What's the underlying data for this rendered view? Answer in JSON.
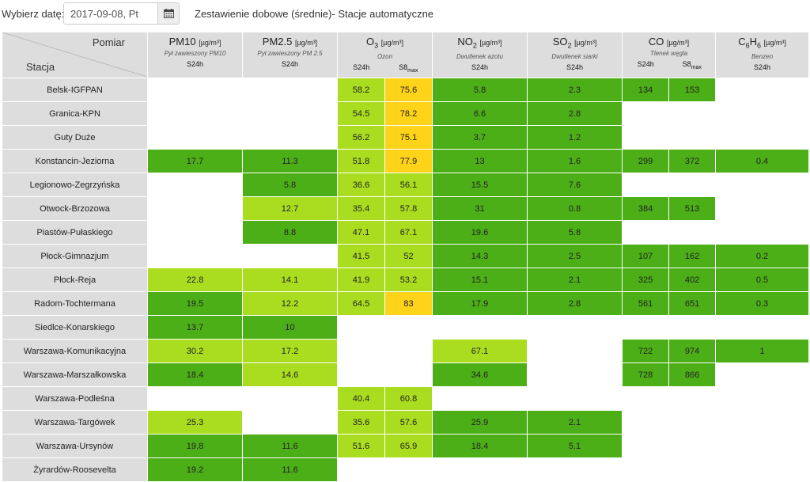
{
  "toolbar": {
    "date_label": "Wybierz datę:",
    "date_value": "2017-09-08, Pt",
    "calendar_icon": "calendar-icon",
    "title": "Zestawienie dobowe (średnie)- Stacje automatyczne"
  },
  "table": {
    "corner": {
      "top": "Pomiar",
      "bottom": "Stacja"
    },
    "columns": [
      {
        "name": "PM10",
        "sub": "",
        "unit": "[µg/m³]",
        "desc": "Pył zawieszony PM10",
        "stats": [
          "S24h"
        ]
      },
      {
        "name": "PM2.5",
        "sub": "",
        "unit": "[µg/m³]",
        "desc": "Pył zawieszony PM 2.5",
        "stats": [
          "S24h"
        ]
      },
      {
        "name": "O",
        "sub": "3",
        "unit": "[µg/m³]",
        "desc": "Ozon",
        "stats": [
          "S24h",
          "S8max"
        ]
      },
      {
        "name": "NO",
        "sub": "2",
        "unit": "[µg/m³]",
        "desc": "Dwutlenek azotu",
        "stats": [
          "S24h"
        ]
      },
      {
        "name": "SO",
        "sub": "2",
        "unit": "[µg/m³]",
        "desc": "Dwutlenek siarki",
        "stats": [
          "S24h"
        ]
      },
      {
        "name": "CO",
        "sub": "",
        "unit": "[µg/m³]",
        "desc": "Tlenek węgla",
        "stats": [
          "S24h",
          "S8max"
        ]
      },
      {
        "name": "C6H6",
        "sub": "",
        "unit": "[µg/m³]",
        "desc": "Benzen",
        "stats": [
          "S24h"
        ]
      }
    ],
    "legend_colors": {
      "g1": "#4caf17",
      "g2": "#aadd20",
      "y": "#ffd31a"
    },
    "rows": [
      {
        "station": "Belsk-IGFPAN",
        "cells": [
          [
            "",
            ""
          ],
          [
            "",
            ""
          ],
          [
            "58.2",
            "g2"
          ],
          [
            "75.6",
            "y"
          ],
          [
            "5.8",
            "g1"
          ],
          [
            "2.3",
            "g1"
          ],
          [
            "134",
            "g1"
          ],
          [
            "153",
            "g1"
          ],
          [
            "",
            ""
          ]
        ]
      },
      {
        "station": "Granica-KPN",
        "cells": [
          [
            "",
            ""
          ],
          [
            "",
            ""
          ],
          [
            "54.5",
            "g2"
          ],
          [
            "78.2",
            "y"
          ],
          [
            "6.6",
            "g1"
          ],
          [
            "2.8",
            "g1"
          ],
          [
            "",
            ""
          ],
          [
            "",
            ""
          ],
          [
            "",
            ""
          ]
        ]
      },
      {
        "station": "Guty Duże",
        "cells": [
          [
            "",
            ""
          ],
          [
            "",
            ""
          ],
          [
            "56.2",
            "g2"
          ],
          [
            "75.1",
            "y"
          ],
          [
            "3.7",
            "g1"
          ],
          [
            "1.2",
            "g1"
          ],
          [
            "",
            ""
          ],
          [
            "",
            ""
          ],
          [
            "",
            ""
          ]
        ]
      },
      {
        "station": "Konstancin-Jeziorna",
        "cells": [
          [
            "17.7",
            "g1"
          ],
          [
            "11.3",
            "g1"
          ],
          [
            "51.8",
            "g2"
          ],
          [
            "77.9",
            "y"
          ],
          [
            "13",
            "g1"
          ],
          [
            "1.6",
            "g1"
          ],
          [
            "299",
            "g1"
          ],
          [
            "372",
            "g1"
          ],
          [
            "0.4",
            "g1"
          ]
        ]
      },
      {
        "station": "Legionowo-Zegrzyńska",
        "cells": [
          [
            "",
            ""
          ],
          [
            "5.8",
            "g1"
          ],
          [
            "36.6",
            "g2"
          ],
          [
            "56.1",
            "g2"
          ],
          [
            "15.5",
            "g1"
          ],
          [
            "7.6",
            "g1"
          ],
          [
            "",
            ""
          ],
          [
            "",
            ""
          ],
          [
            "",
            ""
          ]
        ]
      },
      {
        "station": "Otwock-Brzozowa",
        "cells": [
          [
            "",
            ""
          ],
          [
            "12.7",
            "g2"
          ],
          [
            "35.4",
            "g2"
          ],
          [
            "57.8",
            "g2"
          ],
          [
            "31",
            "g1"
          ],
          [
            "0.8",
            "g1"
          ],
          [
            "384",
            "g1"
          ],
          [
            "513",
            "g1"
          ],
          [
            "",
            ""
          ]
        ]
      },
      {
        "station": "Piastów-Pułaskiego",
        "cells": [
          [
            "",
            ""
          ],
          [
            "8.8",
            "g1"
          ],
          [
            "47.1",
            "g2"
          ],
          [
            "67.1",
            "g2"
          ],
          [
            "19.6",
            "g1"
          ],
          [
            "5.8",
            "g1"
          ],
          [
            "",
            ""
          ],
          [
            "",
            ""
          ],
          [
            "",
            ""
          ]
        ]
      },
      {
        "station": "Płock-Gimnazjum",
        "cells": [
          [
            "",
            ""
          ],
          [
            "",
            ""
          ],
          [
            "41.5",
            "g2"
          ],
          [
            "52",
            "g2"
          ],
          [
            "14.3",
            "g1"
          ],
          [
            "2.5",
            "g1"
          ],
          [
            "107",
            "g1"
          ],
          [
            "162",
            "g1"
          ],
          [
            "0.2",
            "g1"
          ]
        ]
      },
      {
        "station": "Płock-Reja",
        "cells": [
          [
            "22.8",
            "g2"
          ],
          [
            "14.1",
            "g2"
          ],
          [
            "41.9",
            "g2"
          ],
          [
            "53.2",
            "g2"
          ],
          [
            "15.1",
            "g1"
          ],
          [
            "2.1",
            "g1"
          ],
          [
            "325",
            "g1"
          ],
          [
            "402",
            "g1"
          ],
          [
            "0.5",
            "g1"
          ]
        ]
      },
      {
        "station": "Radom-Tochtermana",
        "cells": [
          [
            "19.5",
            "g1"
          ],
          [
            "12.2",
            "g2"
          ],
          [
            "64.5",
            "g2"
          ],
          [
            "83",
            "y"
          ],
          [
            "17.9",
            "g1"
          ],
          [
            "2.8",
            "g1"
          ],
          [
            "561",
            "g1"
          ],
          [
            "651",
            "g1"
          ],
          [
            "0.3",
            "g1"
          ]
        ]
      },
      {
        "station": "Siedlce-Konarskiego",
        "cells": [
          [
            "13.7",
            "g1"
          ],
          [
            "10",
            "g1"
          ],
          [
            "",
            ""
          ],
          [
            "",
            ""
          ],
          [
            "",
            ""
          ],
          [
            "",
            ""
          ],
          [
            "",
            ""
          ],
          [
            "",
            ""
          ],
          [
            "",
            ""
          ]
        ]
      },
      {
        "station": "Warszawa-Komunikacyjna",
        "cells": [
          [
            "30.2",
            "g2"
          ],
          [
            "17.2",
            "g2"
          ],
          [
            "",
            ""
          ],
          [
            "",
            ""
          ],
          [
            "67.1",
            "g2"
          ],
          [
            "",
            ""
          ],
          [
            "722",
            "g1"
          ],
          [
            "974",
            "g1"
          ],
          [
            "1",
            "g1"
          ]
        ]
      },
      {
        "station": "Warszawa-Marszałkowska",
        "cells": [
          [
            "18.4",
            "g1"
          ],
          [
            "14.6",
            "g2"
          ],
          [
            "",
            ""
          ],
          [
            "",
            ""
          ],
          [
            "34.6",
            "g1"
          ],
          [
            "",
            ""
          ],
          [
            "728",
            "g1"
          ],
          [
            "866",
            "g1"
          ],
          [
            "",
            ""
          ]
        ]
      },
      {
        "station": "Warszawa-Podleśna",
        "cells": [
          [
            "",
            ""
          ],
          [
            "",
            ""
          ],
          [
            "40.4",
            "g2"
          ],
          [
            "60.8",
            "g2"
          ],
          [
            "",
            ""
          ],
          [
            "",
            ""
          ],
          [
            "",
            ""
          ],
          [
            "",
            ""
          ],
          [
            "",
            ""
          ]
        ]
      },
      {
        "station": "Warszawa-Targówek",
        "cells": [
          [
            "25.3",
            "g2"
          ],
          [
            "",
            ""
          ],
          [
            "35.6",
            "g2"
          ],
          [
            "57.6",
            "g2"
          ],
          [
            "25.9",
            "g1"
          ],
          [
            "2.1",
            "g1"
          ],
          [
            "",
            ""
          ],
          [
            "",
            ""
          ],
          [
            "",
            ""
          ]
        ]
      },
      {
        "station": "Warszawa-Ursynów",
        "cells": [
          [
            "19.8",
            "g1"
          ],
          [
            "11.6",
            "g1"
          ],
          [
            "51.6",
            "g2"
          ],
          [
            "65.9",
            "g2"
          ],
          [
            "18.4",
            "g1"
          ],
          [
            "5.1",
            "g1"
          ],
          [
            "",
            ""
          ],
          [
            "",
            ""
          ],
          [
            "",
            ""
          ]
        ]
      },
      {
        "station": "Żyrardów-Roosevelta",
        "cells": [
          [
            "19.2",
            "g1"
          ],
          [
            "11.6",
            "g1"
          ],
          [
            "",
            ""
          ],
          [
            "",
            ""
          ],
          [
            "",
            ""
          ],
          [
            "",
            ""
          ],
          [
            "",
            ""
          ],
          [
            "",
            ""
          ],
          [
            "",
            ""
          ]
        ]
      }
    ]
  }
}
